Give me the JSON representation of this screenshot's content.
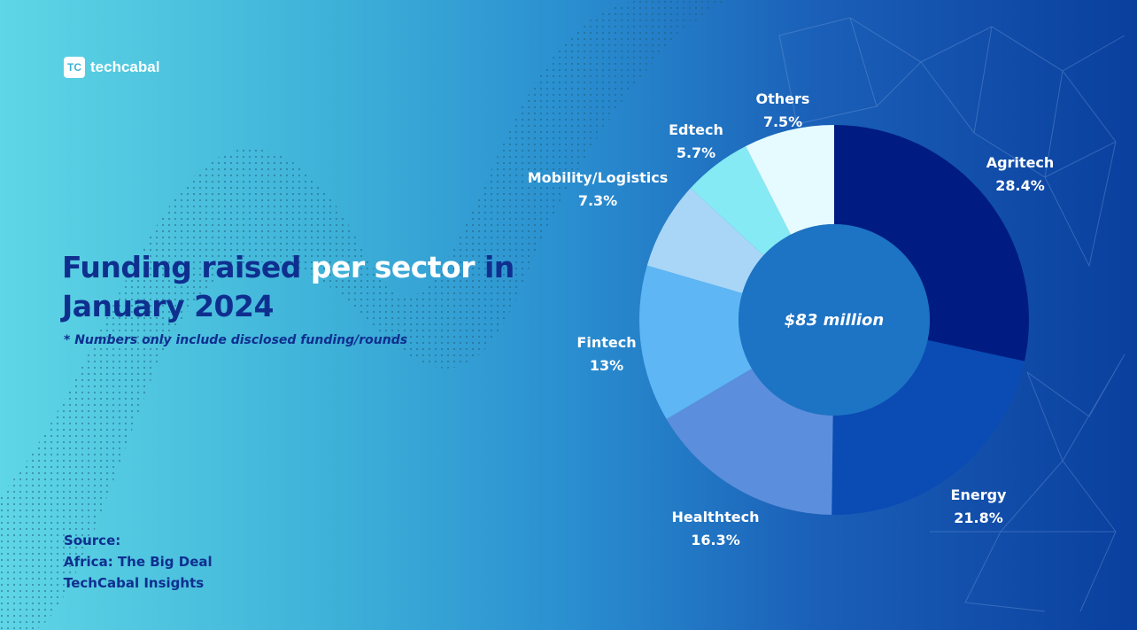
{
  "brand": {
    "logo_mark": "TC",
    "name": "techcabal"
  },
  "title": {
    "part1": "Funding raised ",
    "part2": "per sector",
    "part3": " in January 2024"
  },
  "subtitle": "* Numbers only include disclosed funding/rounds",
  "source": {
    "heading": "Source:",
    "lines": [
      "Africa: The Big Deal",
      "TechCabal Insights"
    ]
  },
  "colors": {
    "title": "#0f2f8f",
    "highlight": "#ffffff"
  },
  "chart_data": {
    "type": "pie",
    "variant": "donut",
    "center_label": "$83 million",
    "slices": [
      {
        "label": "Agritech",
        "value": 28.4,
        "value_label": "28.4%",
        "color": "#001c82"
      },
      {
        "label": "Energy",
        "value": 21.8,
        "value_label": "21.8%",
        "color": "#0a4bb4"
      },
      {
        "label": "Healthtech",
        "value": 16.3,
        "value_label": "16.3%",
        "color": "#5b8edc"
      },
      {
        "label": "Fintech",
        "value": 13,
        "value_label": "13%",
        "color": "#5eb6f4"
      },
      {
        "label": "Mobility/Logistics",
        "value": 7.3,
        "value_label": "7.3%",
        "color": "#a9d6f7"
      },
      {
        "label": "Edtech",
        "value": 5.7,
        "value_label": "5.7%",
        "color": "#85eaf4"
      },
      {
        "label": "Others",
        "value": 7.5,
        "value_label": "7.5%",
        "color": "#e6fbff"
      }
    ]
  }
}
